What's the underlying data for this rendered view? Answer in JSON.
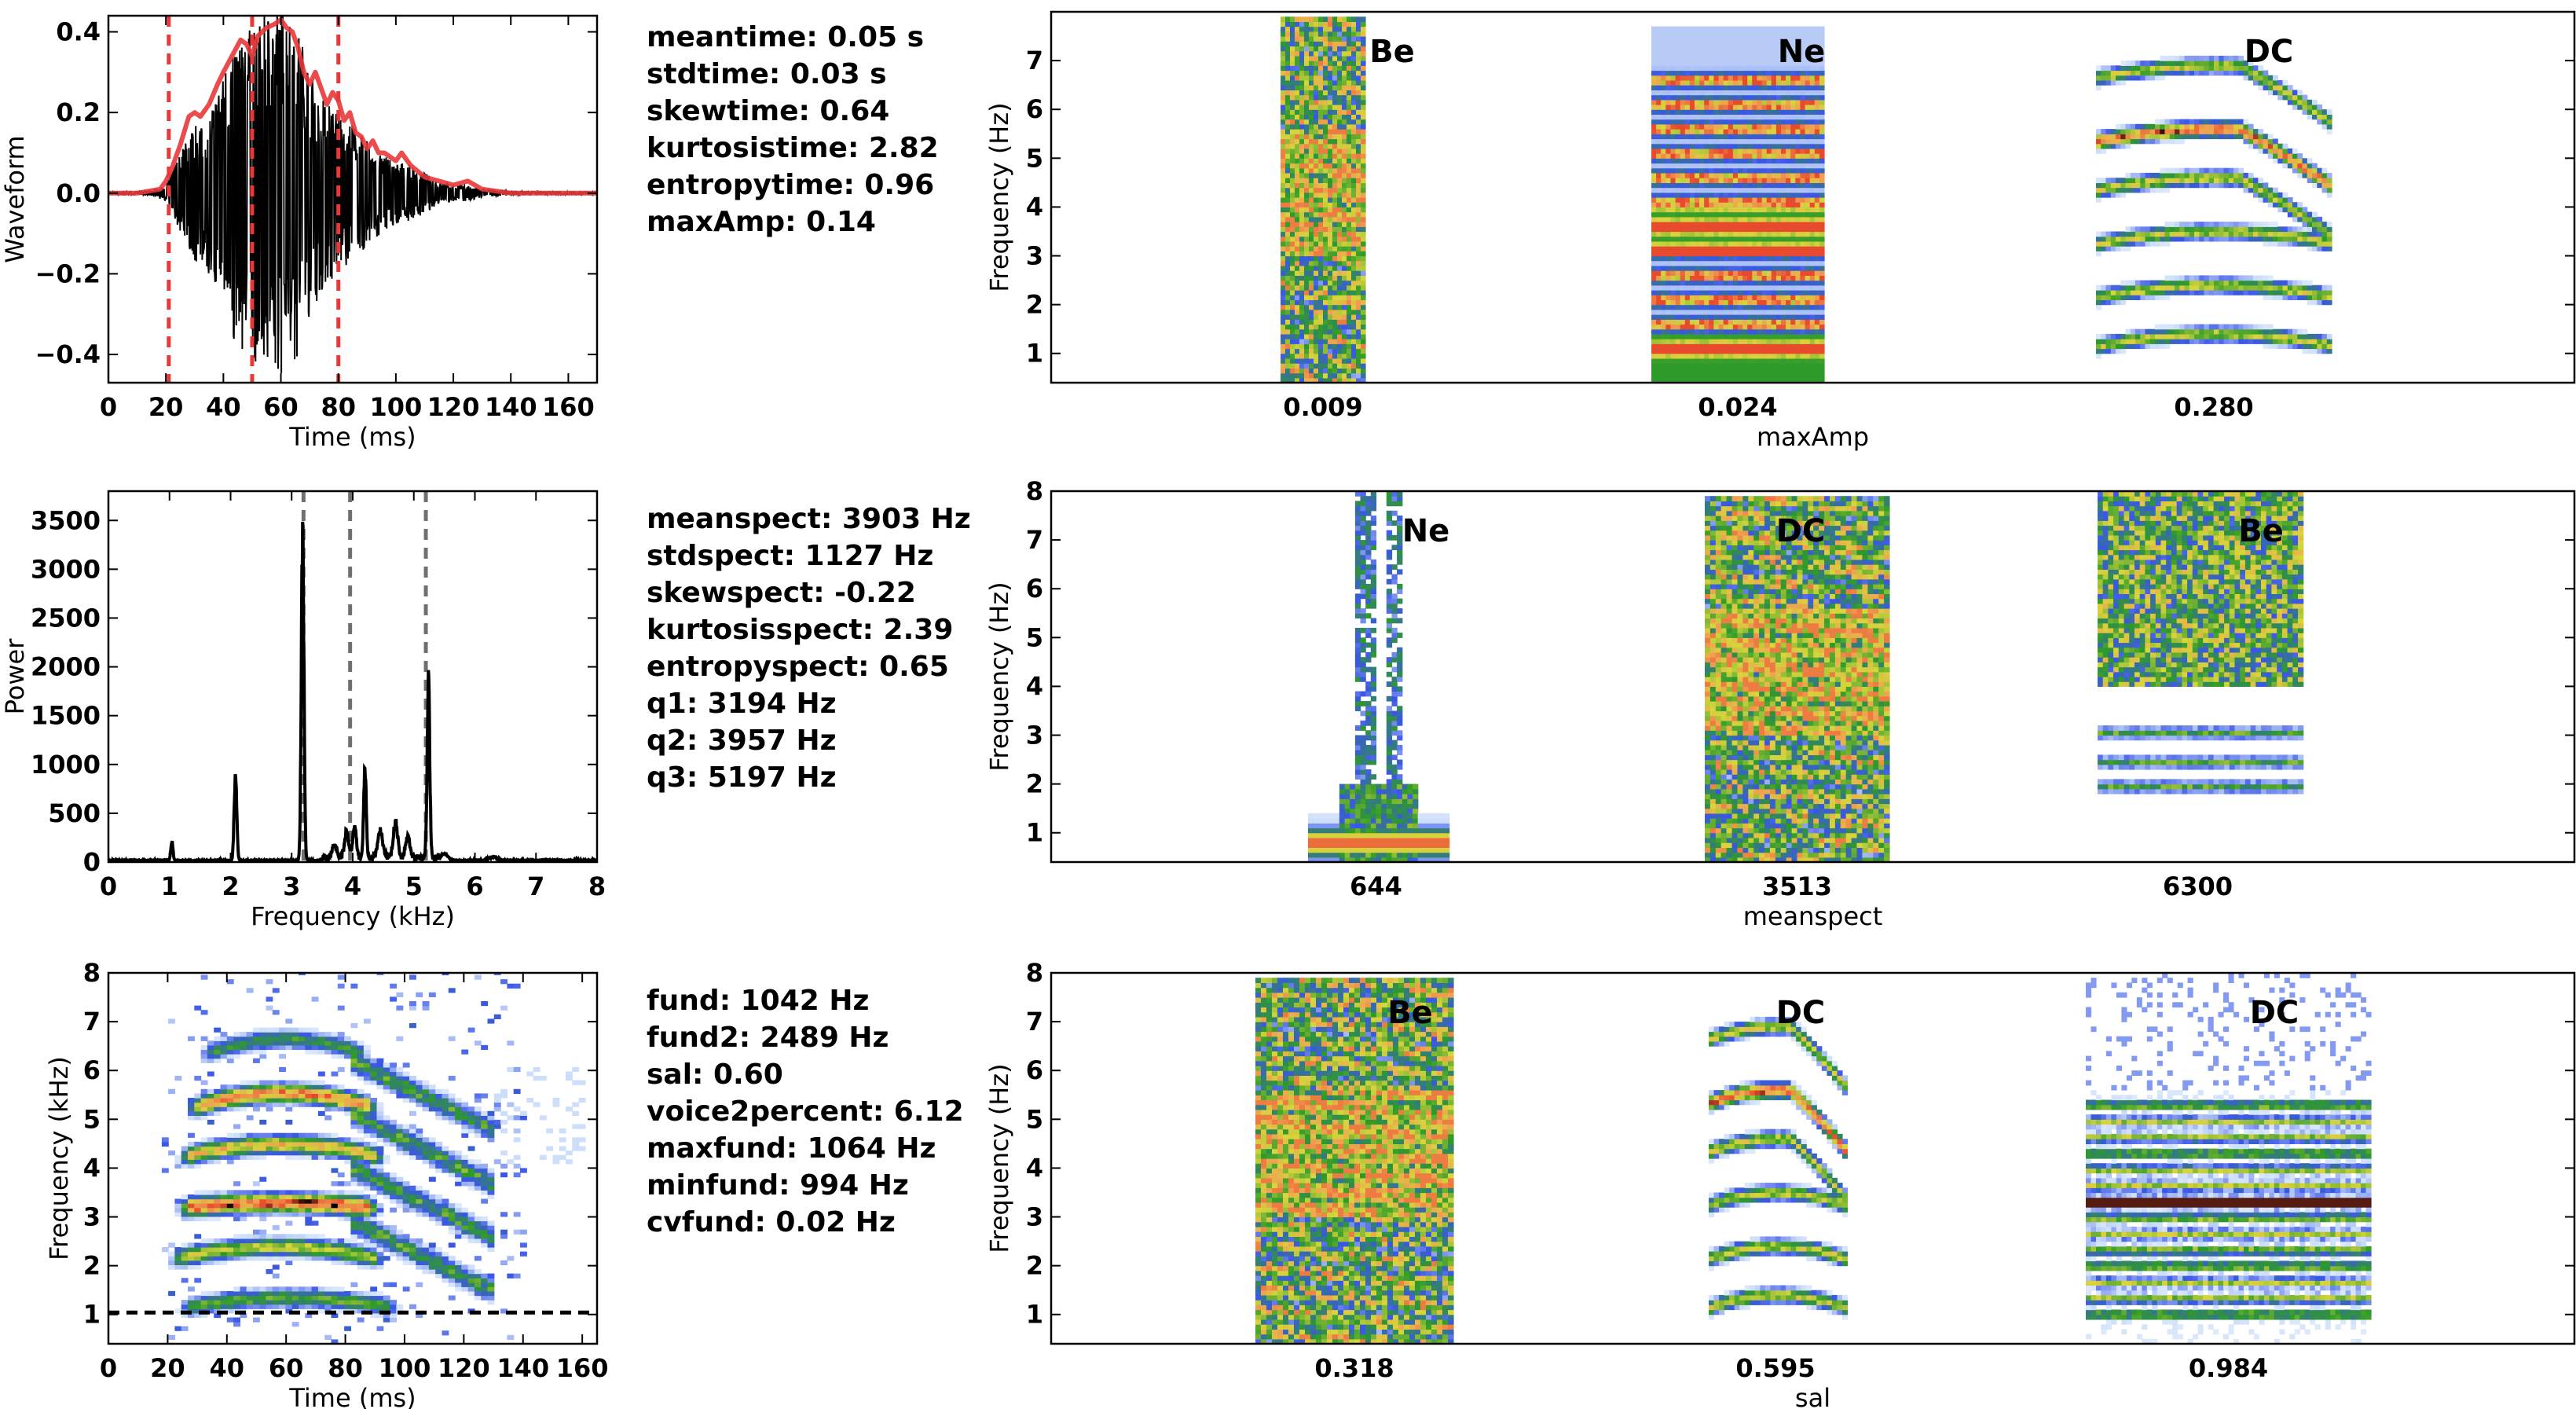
{
  "colors": {
    "envelope": "#e8393a",
    "marker_red": "#e8393a",
    "marker_grey": "#707070",
    "trace": "#000000",
    "spec_palette": [
      "#3a56e8",
      "#2e9a2a",
      "#d6d63c",
      "#f0a050",
      "#e84a2e"
    ]
  },
  "stats": {
    "time": [
      "meantime: 0.05 s",
      "stdtime: 0.03 s",
      "skewtime: 0.64",
      "kurtosistime: 2.82",
      "entropytime: 0.96",
      "maxAmp: 0.14"
    ],
    "spect": [
      "meanspect: 3903 Hz",
      "stdspect: 1127 Hz",
      "skewspect: -0.22",
      "kurtosisspect: 2.39",
      "entropyspect: 0.65",
      "q1: 3194 Hz",
      "q2: 3957 Hz",
      "q3: 5197 Hz"
    ],
    "fund": [
      "fund: 1042 Hz",
      "fund2: 2489 Hz",
      "sal: 0.60",
      "voice2percent: 6.12",
      "maxfund: 1064 Hz",
      "minfund: 994 Hz",
      "cvfund: 0.02 Hz"
    ]
  },
  "chart_data": [
    {
      "id": "waveform",
      "type": "line",
      "xlabel": "Time (ms)",
      "ylabel": "Waveform",
      "xlim": [
        0,
        170
      ],
      "ylim": [
        -0.47,
        0.44
      ],
      "xticks": [
        0,
        20,
        40,
        60,
        80,
        100,
        120,
        140,
        160
      ],
      "yticks": [
        -0.4,
        -0.2,
        0.0,
        0.2,
        0.4
      ],
      "ytick_labels": [
        "−0.4",
        "−0.2",
        "0.0",
        "0.2",
        "0.4"
      ],
      "vlines_ms": [
        21,
        50,
        80
      ],
      "envelope": {
        "x": [
          0,
          10,
          18,
          20,
          22,
          25,
          28,
          30,
          32,
          35,
          38,
          40,
          43,
          46,
          48,
          50,
          52,
          55,
          58,
          60,
          62,
          64,
          66,
          68,
          70,
          72,
          74,
          76,
          78,
          80,
          82,
          84,
          86,
          88,
          90,
          92,
          94,
          96,
          98,
          100,
          102,
          105,
          110,
          115,
          120,
          125,
          130,
          140,
          150,
          160,
          170
        ],
        "y": [
          0.0,
          0.0,
          0.01,
          0.03,
          0.06,
          0.12,
          0.19,
          0.2,
          0.19,
          0.22,
          0.27,
          0.3,
          0.34,
          0.38,
          0.37,
          0.34,
          0.39,
          0.41,
          0.42,
          0.43,
          0.41,
          0.4,
          0.36,
          0.3,
          0.27,
          0.3,
          0.26,
          0.22,
          0.25,
          0.23,
          0.18,
          0.2,
          0.15,
          0.14,
          0.11,
          0.13,
          0.1,
          0.1,
          0.09,
          0.08,
          0.1,
          0.07,
          0.04,
          0.03,
          0.02,
          0.03,
          0.01,
          0.0,
          0.0,
          0.0,
          0.0
        ]
      },
      "trace_amplitude": {
        "x": [
          0,
          15,
          20,
          25,
          30,
          35,
          40,
          45,
          50,
          55,
          60,
          65,
          70,
          75,
          80,
          85,
          90,
          95,
          100,
          105,
          110,
          115,
          120,
          125,
          130,
          140,
          150,
          170
        ],
        "y": [
          0.003,
          0.005,
          0.02,
          0.1,
          0.17,
          0.2,
          0.29,
          0.36,
          0.39,
          0.42,
          0.44,
          0.4,
          0.3,
          0.24,
          0.2,
          0.17,
          0.13,
          0.1,
          0.08,
          0.07,
          0.05,
          0.03,
          0.02,
          0.02,
          0.01,
          0.005,
          0.004,
          0.003
        ]
      }
    },
    {
      "id": "power-spectrum",
      "type": "line",
      "xlabel": "Frequency (kHz)",
      "ylabel": "Power",
      "xlim": [
        0,
        8
      ],
      "ylim": [
        0,
        3800
      ],
      "xticks": [
        0,
        1,
        2,
        3,
        4,
        5,
        6,
        7,
        8
      ],
      "yticks": [
        0,
        500,
        1000,
        1500,
        2000,
        2500,
        3000,
        3500
      ],
      "vlines_khz": [
        3.194,
        3.957,
        5.197
      ],
      "peaks": [
        {
          "x": 1.04,
          "y": 220,
          "w": 0.025
        },
        {
          "x": 2.08,
          "y": 950,
          "w": 0.03
        },
        {
          "x": 3.18,
          "y": 3800,
          "w": 0.03
        },
        {
          "x": 3.7,
          "y": 150,
          "w": 0.05
        },
        {
          "x": 3.9,
          "y": 300,
          "w": 0.05
        },
        {
          "x": 4.03,
          "y": 350,
          "w": 0.04
        },
        {
          "x": 4.2,
          "y": 1010,
          "w": 0.03
        },
        {
          "x": 4.45,
          "y": 300,
          "w": 0.06
        },
        {
          "x": 4.7,
          "y": 400,
          "w": 0.05
        },
        {
          "x": 4.9,
          "y": 250,
          "w": 0.05
        },
        {
          "x": 5.24,
          "y": 1990,
          "w": 0.03
        },
        {
          "x": 5.5,
          "y": 80,
          "w": 0.08
        },
        {
          "x": 6.3,
          "y": 40,
          "w": 0.1
        }
      ]
    },
    {
      "id": "own-spectrogram",
      "type": "heatmap",
      "xlabel": "Time (ms)",
      "ylabel": "Frequency (kHz)",
      "xlim": [
        0,
        165
      ],
      "ylim": [
        0.4,
        8
      ],
      "xticks": [
        0,
        20,
        40,
        60,
        80,
        100,
        120,
        140,
        160
      ],
      "yticks": [
        1,
        2,
        3,
        4,
        5,
        6,
        7,
        8
      ],
      "hline_khz": 1.04,
      "bands": [
        {
          "f": 1.1,
          "t0": 25,
          "t1": 95,
          "hump": 0.2,
          "i": 0.55
        },
        {
          "f": 2.1,
          "t0": 22,
          "t1": 90,
          "hump": 0.25,
          "i": 0.65
        },
        {
          "f": 3.15,
          "t0": 25,
          "t1": 88,
          "hump": 0.1,
          "i": 0.95
        },
        {
          "f": 4.2,
          "t0": 25,
          "t1": 90,
          "hump": 0.25,
          "i": 0.75
        },
        {
          "f": 5.2,
          "t0": 28,
          "t1": 88,
          "hump": 0.3,
          "i": 0.85
        },
        {
          "f": 6.3,
          "t0": 32,
          "t1": 85,
          "hump": 0.3,
          "i": 0.5
        }
      ]
    },
    {
      "id": "maxamp-strip",
      "type": "heatmap",
      "xlabel": "maxAmp",
      "ylabel": "Frequency (Hz)",
      "ylim": [
        0.4,
        8
      ],
      "yticks": [
        1,
        2,
        3,
        4,
        5,
        6,
        7
      ],
      "items": [
        {
          "label": "Be",
          "value": "0.009",
          "kind": "noise"
        },
        {
          "label": "Ne",
          "value": "0.024",
          "kind": "stack"
        },
        {
          "label": "DC",
          "value": "0.280",
          "kind": "arch"
        }
      ]
    },
    {
      "id": "meanspect-strip",
      "type": "heatmap",
      "xlabel": "meanspect",
      "ylabel": "Frequency (Hz)",
      "ylim": [
        0.4,
        8
      ],
      "yticks": [
        1,
        2,
        3,
        4,
        5,
        6,
        7,
        8
      ],
      "items": [
        {
          "label": "Ne",
          "value": "644",
          "kind": "narrow"
        },
        {
          "label": "DC",
          "value": "3513",
          "kind": "noise"
        },
        {
          "label": "Be",
          "value": "6300",
          "kind": "split"
        }
      ]
    },
    {
      "id": "sal-strip",
      "type": "heatmap",
      "xlabel": "sal",
      "ylabel": "Frequency (Hz)",
      "ylim": [
        0.4,
        8
      ],
      "yticks": [
        1,
        2,
        3,
        4,
        5,
        6,
        7,
        8
      ],
      "items": [
        {
          "label": "Be",
          "value": "0.318",
          "kind": "noise"
        },
        {
          "label": "DC",
          "value": "0.595",
          "kind": "arch"
        },
        {
          "label": "DC",
          "value": "0.984",
          "kind": "flatstack"
        }
      ]
    }
  ]
}
